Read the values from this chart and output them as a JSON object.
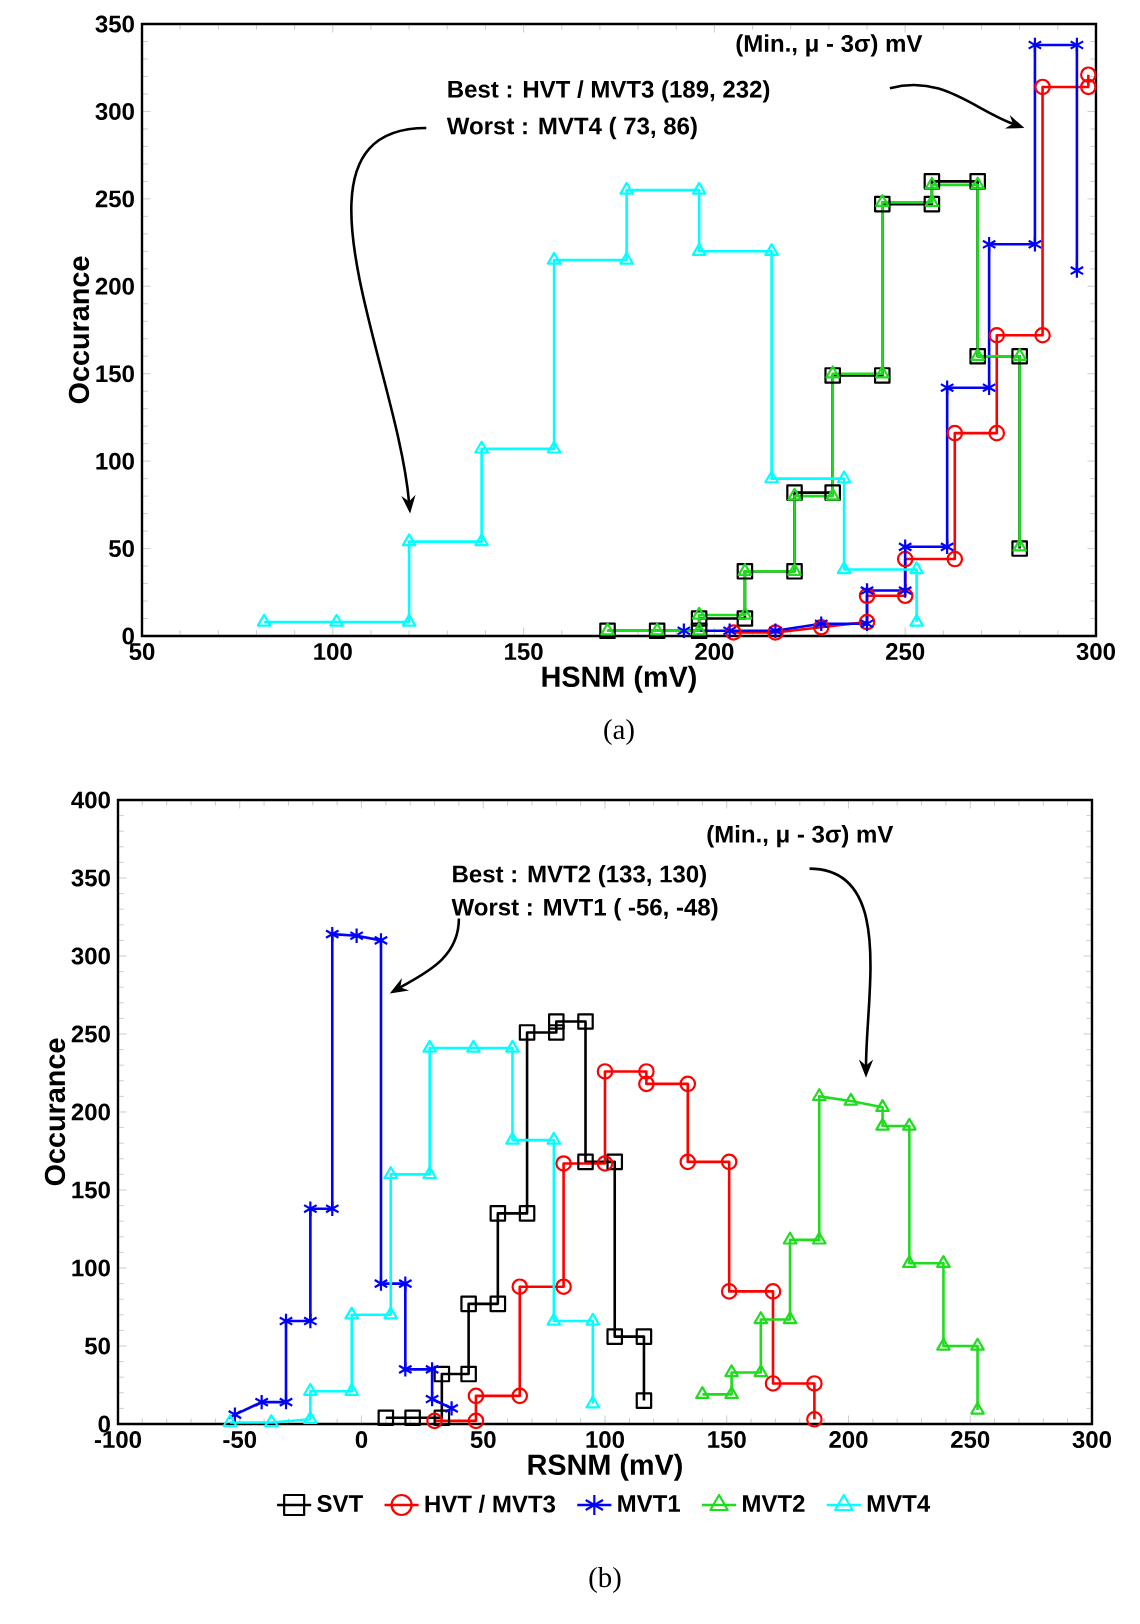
{
  "chart_data": [
    {
      "type": "line",
      "title": "(a)",
      "xlabel": "HSNM (mV)",
      "ylabel": "Occurance",
      "xlim": [
        50,
        300
      ],
      "ylim": [
        0,
        350
      ],
      "xticks": [
        50,
        100,
        150,
        200,
        250,
        300
      ],
      "yticks": [
        0,
        50,
        100,
        150,
        200,
        250,
        300,
        350
      ],
      "annotations": [
        "(Min., μ - 3σ) mV",
        "Best : HVT / MVT3 (189, 232)",
        "Worst : MVT4 ( 73, 86)"
      ],
      "series": [
        {
          "color": "#000000",
          "marker": "square",
          "x": [
            172,
            185,
            196,
            196,
            208,
            208,
            221,
            221,
            231,
            231,
            244,
            244,
            257,
            257,
            269,
            269,
            280,
            280
          ],
          "values": [
            3,
            3,
            3,
            10,
            10,
            37,
            37,
            82,
            82,
            149,
            149,
            247,
            247,
            260,
            260,
            160,
            160,
            50
          ]
        },
        {
          "color": "#ff0000",
          "marker": "circle",
          "x": [
            205,
            216,
            228,
            240,
            240,
            250,
            250,
            263,
            263,
            274,
            274,
            286,
            286,
            298,
            298
          ],
          "values": [
            2,
            2,
            5,
            8,
            23,
            23,
            44,
            44,
            116,
            116,
            172,
            172,
            314,
            314,
            321
          ]
        },
        {
          "color": "#0000ff",
          "marker": "cross",
          "x": [
            192,
            204,
            216,
            228,
            240,
            240,
            250,
            250,
            261,
            261,
            272,
            272,
            284,
            284,
            295,
            295
          ],
          "values": [
            3,
            3,
            3,
            7,
            7,
            26,
            26,
            51,
            51,
            142,
            142,
            224,
            224,
            338,
            338,
            209
          ]
        },
        {
          "color": "#1fdc1f",
          "marker": "triangle",
          "x": [
            172,
            185,
            196,
            196,
            208,
            208,
            221,
            221,
            231,
            231,
            244,
            244,
            257,
            257,
            269,
            269,
            280,
            280
          ],
          "values": [
            3,
            3,
            3,
            12,
            12,
            37,
            37,
            80,
            80,
            150,
            150,
            248,
            248,
            258,
            258,
            160,
            160,
            51
          ]
        },
        {
          "color": "#00ffff",
          "marker": "triangle",
          "x": [
            82,
            101,
            120,
            120,
            139,
            139,
            158,
            158,
            177,
            177,
            196,
            196,
            215,
            215,
            234,
            234,
            253,
            253
          ],
          "values": [
            8,
            8,
            8,
            54,
            54,
            107,
            107,
            215,
            215,
            255,
            255,
            220,
            220,
            90,
            90,
            38,
            38,
            8
          ]
        }
      ]
    },
    {
      "type": "line",
      "title": "(b)",
      "xlabel": "RSNM (mV)",
      "ylabel": "Occurance",
      "xlim": [
        -100,
        300
      ],
      "ylim": [
        0,
        400
      ],
      "xticks": [
        -100,
        -50,
        0,
        50,
        100,
        150,
        200,
        250,
        300
      ],
      "yticks": [
        0,
        50,
        100,
        150,
        200,
        250,
        300,
        350,
        400
      ],
      "legend": "bottom",
      "annotations": [
        "(Min., μ - 3σ) mV",
        "Best : MVT2 (133, 130)",
        "Worst : MVT1 ( -56, -48)"
      ],
      "series": [
        {
          "name": "SVT",
          "color": "#000000",
          "marker": "square",
          "x": [
            10,
            21,
            33,
            33,
            44,
            44,
            56,
            56,
            68,
            68,
            80,
            80,
            92,
            92,
            104,
            104,
            116,
            116
          ],
          "values": [
            4,
            4,
            4,
            32,
            32,
            77,
            77,
            135,
            135,
            251,
            251,
            258,
            258,
            168,
            168,
            56,
            56,
            15
          ]
        },
        {
          "name": "HVT / MVT3",
          "color": "#ff0000",
          "marker": "circle",
          "x": [
            30,
            47,
            47,
            65,
            65,
            83,
            83,
            100,
            100,
            117,
            117,
            134,
            134,
            151,
            151,
            169,
            169,
            186,
            186
          ],
          "values": [
            2,
            2,
            18,
            18,
            88,
            88,
            167,
            167,
            226,
            226,
            218,
            218,
            168,
            168,
            85,
            85,
            26,
            26,
            3
          ]
        },
        {
          "name": "MVT1",
          "color": "#0000ff",
          "marker": "cross",
          "x": [
            -52,
            -41,
            -31,
            -31,
            -21,
            -21,
            -12,
            -12,
            -2,
            8,
            8,
            18,
            18,
            29,
            29,
            37
          ],
          "values": [
            6,
            14,
            14,
            66,
            66,
            138,
            138,
            314,
            313,
            310,
            90,
            90,
            35,
            35,
            16,
            10
          ]
        },
        {
          "name": "MVT2",
          "color": "#1fdc1f",
          "marker": "triangle",
          "x": [
            140,
            152,
            152,
            164,
            164,
            176,
            176,
            188,
            188,
            201,
            214,
            214,
            225,
            225,
            239,
            239,
            253,
            253
          ],
          "values": [
            19,
            19,
            33,
            33,
            67,
            67,
            118,
            118,
            210,
            207,
            203,
            191,
            191,
            103,
            103,
            50,
            50,
            9
          ]
        },
        {
          "name": "MVT4",
          "color": "#00ffff",
          "marker": "triangle",
          "x": [
            -54,
            -37,
            -21,
            -21,
            -4,
            -4,
            12,
            12,
            28,
            28,
            46,
            62,
            62,
            79,
            79,
            95,
            95
          ],
          "values": [
            1,
            1,
            3,
            21,
            21,
            70,
            70,
            160,
            160,
            241,
            241,
            241,
            182,
            182,
            66,
            66,
            13
          ]
        }
      ]
    }
  ]
}
